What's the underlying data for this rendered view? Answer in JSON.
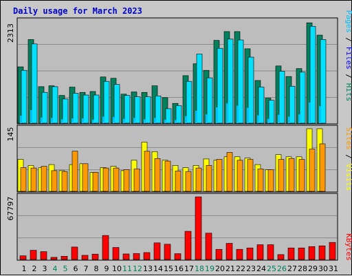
{
  "title": "Daily usage for March 2023",
  "colors": {
    "background": "#c8c8c8",
    "plot": "#bdbdbd",
    "title": "#0000cc",
    "hits": "#00805c",
    "files": "#00e0ff",
    "pages": "#00c0ff",
    "visits": "#ffff00",
    "sites": "#ff9900",
    "kbytes": "#ff0000",
    "weekend": "#00805c"
  },
  "panels": {
    "top": {
      "max_label": "2313",
      "legend": [
        {
          "text": "Pages",
          "color": "#00c0ff"
        },
        {
          "text": " / ",
          "color": "#000000"
        },
        {
          "text": "Files",
          "color": "#0000ff"
        },
        {
          "text": " / ",
          "color": "#000000"
        },
        {
          "text": "Hits",
          "color": "#00805c"
        }
      ]
    },
    "middle": {
      "max_label": "145",
      "legend": [
        {
          "text": "Sites",
          "color": "#ff9900"
        },
        {
          "text": " / ",
          "color": "#000000"
        },
        {
          "text": "Visits",
          "color": "#ffff00"
        }
      ]
    },
    "bottom": {
      "max_label": "67797",
      "legend": [
        {
          "text": "KBytes",
          "color": "#ff0000"
        }
      ]
    }
  },
  "chart_data": {
    "type": "bar",
    "title": "Daily usage for March 2023",
    "categories": [
      "1",
      "2",
      "3",
      "4",
      "5",
      "6",
      "7",
      "8",
      "9",
      "10",
      "11",
      "12",
      "13",
      "14",
      "15",
      "16",
      "17",
      "18",
      "19",
      "20",
      "21",
      "22",
      "23",
      "24",
      "25",
      "26",
      "27",
      "28",
      "29",
      "30",
      "31"
    ],
    "weekend_days": [
      "4",
      "5",
      "11",
      "12",
      "18",
      "19",
      "25",
      "26"
    ],
    "grid": true,
    "legend_placement": "right-vertical",
    "panels": [
      {
        "name": "top",
        "ylim": [
          0,
          2313
        ],
        "series": [
          {
            "name": "Hits",
            "values": [
              1280,
              1900,
              830,
              850,
              630,
              820,
              700,
              720,
              1050,
              1020,
              660,
              710,
              700,
              850,
              580,
              450,
              1080,
              1350,
              1200,
              1880,
              2080,
              2080,
              1690,
              970,
              570,
              1300,
              1060,
              1240,
              2280,
              2000,
              0
            ]
          },
          {
            "name": "Files",
            "values": [
              1200,
              1800,
              700,
              830,
              550,
              680,
              640,
              640,
              950,
              880,
              630,
              600,
              600,
              620,
              330,
              400,
              950,
              1570,
              1030,
              1700,
              1910,
              1890,
              1500,
              820,
              520,
              1180,
              840,
              1160,
              2200,
              1900,
              0
            ]
          },
          {
            "name": "Pages",
            "values": [
              170,
              300,
              130,
              120,
              90,
              110,
              110,
              80,
              150,
              140,
              100,
              120,
              90,
              120,
              80,
              70,
              160,
              280,
              200,
              360,
              450,
              400,
              350,
              180,
              100,
              190,
              150,
              200,
              470,
              390,
              0
            ]
          }
        ]
      },
      {
        "name": "middle",
        "ylim": [
          0,
          145
        ],
        "series": [
          {
            "name": "Visits",
            "values": [
              74,
              60,
              55,
              62,
              48,
              62,
              64,
              44,
              55,
              58,
              48,
              72,
              114,
              92,
              72,
              60,
              55,
              60,
              75,
              72,
              80,
              80,
              77,
              62,
              50,
              85,
              80,
              80,
              145,
              145,
              0
            ]
          },
          {
            "name": "Sites",
            "values": [
              55,
              54,
              58,
              48,
              46,
              93,
              64,
              44,
              54,
              54,
              50,
              52,
              93,
              76,
              70,
              47,
              46,
              54,
              60,
              74,
              90,
              72,
              74,
              52,
              50,
              74,
              76,
              74,
              98,
              110,
              0
            ]
          }
        ]
      },
      {
        "name": "bottom",
        "ylim": [
          0,
          67797
        ],
        "series": [
          {
            "name": "KBytes",
            "values": [
              4000,
              10000,
              8500,
              2300,
              3500,
              13500,
              4500,
              5800,
              26000,
              13000,
              6000,
              6500,
              7500,
              18000,
              16500,
              6300,
              30500,
              67797,
              28500,
              11000,
              17500,
              11000,
              12500,
              16000,
              16000,
              5300,
              12500,
              12500,
              14000,
              14800,
              18500
            ]
          }
        ]
      }
    ]
  }
}
